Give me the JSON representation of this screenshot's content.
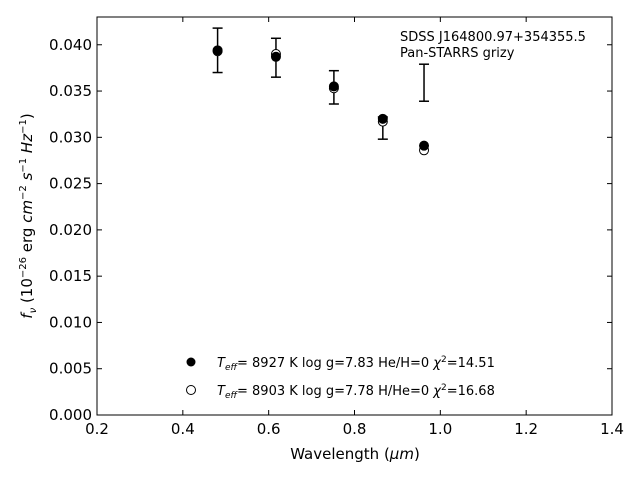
{
  "chart_data": {
    "type": "scatter",
    "xlabel": "Wavelength (μm)",
    "xlabel_parts": {
      "text": "Wavelength (",
      "unit": "μm",
      "close": ")"
    },
    "ylabel_parts": {
      "f": "f",
      "nu": "ν",
      "open": " (10",
      "exp": "−26",
      "erg": " erg ",
      "cm": "cm",
      "cm_exp": "−2",
      "s": "s",
      "s_exp": "−1",
      "Hz": "Hz",
      "Hz_exp": "−1",
      "close": ")"
    },
    "xlim": [
      0.2,
      1.4
    ],
    "ylim": [
      0.0,
      0.043
    ],
    "xticks": [
      "0.2",
      "0.4",
      "0.6",
      "0.8",
      "1.0",
      "1.2",
      "1.4"
    ],
    "yticks": [
      "0.000",
      "0.005",
      "0.010",
      "0.015",
      "0.020",
      "0.025",
      "0.030",
      "0.035",
      "0.040"
    ],
    "annotation": [
      "SDSS J164800.97+354355.5",
      "Pan-STARRS grizy"
    ],
    "legend_position": "lower-center",
    "observed": {
      "x": [
        0.481,
        0.617,
        0.752,
        0.866,
        0.962
      ],
      "y": [
        0.0394,
        0.0386,
        0.0354,
        0.031,
        0.0359
      ],
      "err": [
        0.0024,
        0.0021,
        0.0018,
        0.0012,
        0.002
      ]
    },
    "series": [
      {
        "marker": "filled-circle",
        "x": [
          0.481,
          0.617,
          0.752,
          0.866,
          0.962
        ],
        "y": [
          0.0394,
          0.0387,
          0.0355,
          0.032,
          0.0291
        ],
        "legend": {
          "teff_sym": "T",
          "teff_sub": "eff",
          "eq": "=  8927 K  log g=7.83  He/H=0  ",
          "chi": "χ",
          "chi_exp": "2",
          "chi_val": "=14.51"
        }
      },
      {
        "marker": "open-circle",
        "x": [
          0.481,
          0.617,
          0.752,
          0.866,
          0.962
        ],
        "y": [
          0.0393,
          0.039,
          0.0353,
          0.0317,
          0.0286
        ],
        "legend": {
          "teff_sym": "T",
          "teff_sub": "eff",
          "eq": "=  8903 K  log g=7.78  H/He=0  ",
          "chi": "χ",
          "chi_exp": "2",
          "chi_val": "=16.68"
        }
      }
    ],
    "colors": {
      "axis": "#000000",
      "marker": "#000000",
      "background": "#ffffff"
    }
  }
}
